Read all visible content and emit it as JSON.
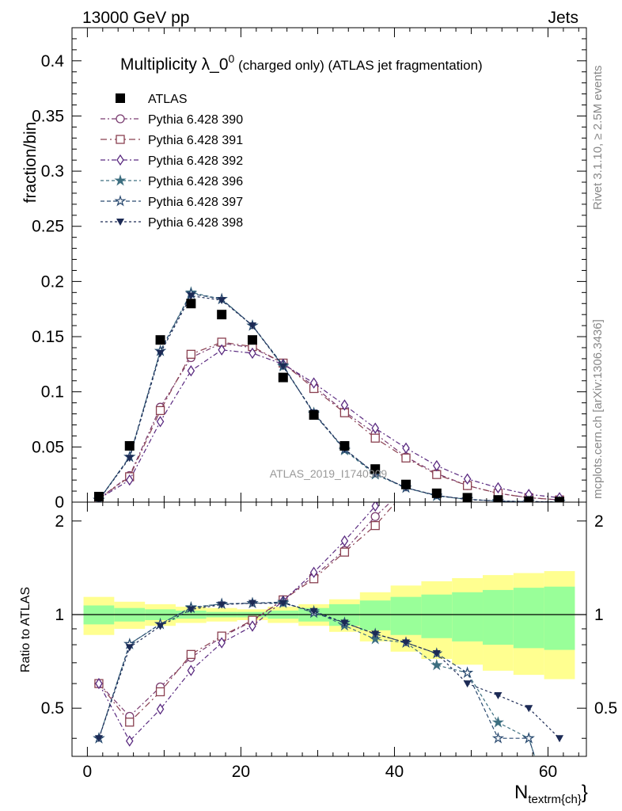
{
  "header": {
    "left": "13000 GeV pp",
    "right": "Jets"
  },
  "side_labels": {
    "rivet": "Rivet 3.1.10, ≥ 2.5M events",
    "mcplots": "mcplots.cern.ch [arXiv:1306.3436]"
  },
  "chart_data": {
    "type": "line",
    "title_main": "Multiplicity λ_0",
    "title_sup": "0",
    "title_rest": " (charged only) (ATLAS jet fragmentation)",
    "watermark": "ATLAS_2019_I1740909",
    "ylabel": "fraction/bin",
    "ratio_ylabel": "Ratio to ATLAS",
    "xlabel_main": "N",
    "xlabel_sub": "textrm{ch}",
    "xlabel_close": "}",
    "xlim": [
      -2,
      65
    ],
    "ylim": [
      0,
      0.43
    ],
    "ratio_ylim": [
      0.35,
      2.3
    ],
    "x_ticks": [
      "0",
      "20",
      "40",
      "60"
    ],
    "y_ticks": [
      "0",
      "0.05",
      "0.1",
      "0.15",
      "0.2",
      "0.25",
      "0.3",
      "0.35",
      "0.4"
    ],
    "ratio_y_ticks": [
      "0.5",
      "1",
      "2"
    ],
    "x": [
      1.5,
      5.5,
      9.5,
      13.5,
      17.5,
      21.5,
      25.5,
      29.5,
      33.5,
      37.5,
      41.5,
      45.5,
      49.5,
      53.5,
      57.5,
      61.5
    ],
    "data": {
      "name": "ATLAS",
      "values": [
        0.005,
        0.051,
        0.147,
        0.18,
        0.17,
        0.147,
        0.113,
        0.079,
        0.051,
        0.03,
        0.016,
        0.008,
        0.004,
        0.002,
        0.001,
        0.0005
      ]
    },
    "band_outer": [
      0.14,
      0.1,
      0.08,
      0.06,
      0.05,
      0.04,
      0.06,
      0.08,
      0.12,
      0.18,
      0.24,
      0.28,
      0.31,
      0.34,
      0.36,
      0.38
    ],
    "band_inner": [
      0.07,
      0.05,
      0.04,
      0.03,
      0.02,
      0.02,
      0.03,
      0.05,
      0.08,
      0.11,
      0.14,
      0.16,
      0.18,
      0.2,
      0.22,
      0.23
    ],
    "series": [
      {
        "name": "Pythia 6.428 390",
        "color": "#7a3c70",
        "marker": "circle-open",
        "dash": "6,3,2,3",
        "values": [
          0.003,
          0.024,
          0.086,
          0.131,
          0.144,
          0.14,
          0.126,
          0.105,
          0.082,
          0.062,
          0.041,
          0.026,
          0.015,
          0.008,
          0.004,
          0.002
        ]
      },
      {
        "name": "Pythia 6.428 391",
        "color": "#8a4050",
        "marker": "square-open",
        "dash": "8,4,2,4",
        "values": [
          0.003,
          0.023,
          0.083,
          0.134,
          0.145,
          0.141,
          0.126,
          0.103,
          0.081,
          0.058,
          0.04,
          0.025,
          0.015,
          0.008,
          0.004,
          0.002
        ]
      },
      {
        "name": "Pythia 6.428 392",
        "color": "#5a2a80",
        "marker": "diamond-open",
        "dash": "6,3,2,3",
        "values": [
          0.003,
          0.02,
          0.073,
          0.119,
          0.138,
          0.135,
          0.125,
          0.108,
          0.088,
          0.067,
          0.049,
          0.033,
          0.021,
          0.013,
          0.007,
          0.004
        ]
      },
      {
        "name": "Pythia 6.428 396",
        "color": "#3d6f80",
        "marker": "star-filled",
        "dash": "4,3",
        "values": [
          0.002,
          0.041,
          0.137,
          0.19,
          0.184,
          0.16,
          0.123,
          0.081,
          0.047,
          0.025,
          0.013,
          0.0055,
          0.0026,
          0.0009,
          0.0004,
          0.0001
        ]
      },
      {
        "name": "Pythia 6.428 397",
        "color": "#2a4a70",
        "marker": "star-open",
        "dash": "5,3",
        "values": [
          0.002,
          0.041,
          0.137,
          0.189,
          0.184,
          0.16,
          0.124,
          0.08,
          0.048,
          0.026,
          0.013,
          0.006,
          0.0026,
          0.0008,
          0.0004,
          0.0001
        ]
      },
      {
        "name": "Pythia 6.428 398",
        "color": "#1c2a55",
        "marker": "triangle-down-filled",
        "dash": "3,3",
        "values": [
          0.002,
          0.04,
          0.135,
          0.187,
          0.183,
          0.16,
          0.123,
          0.081,
          0.048,
          0.026,
          0.013,
          0.006,
          0.0024,
          0.0011,
          0.0005,
          0.0002
        ]
      }
    ]
  }
}
